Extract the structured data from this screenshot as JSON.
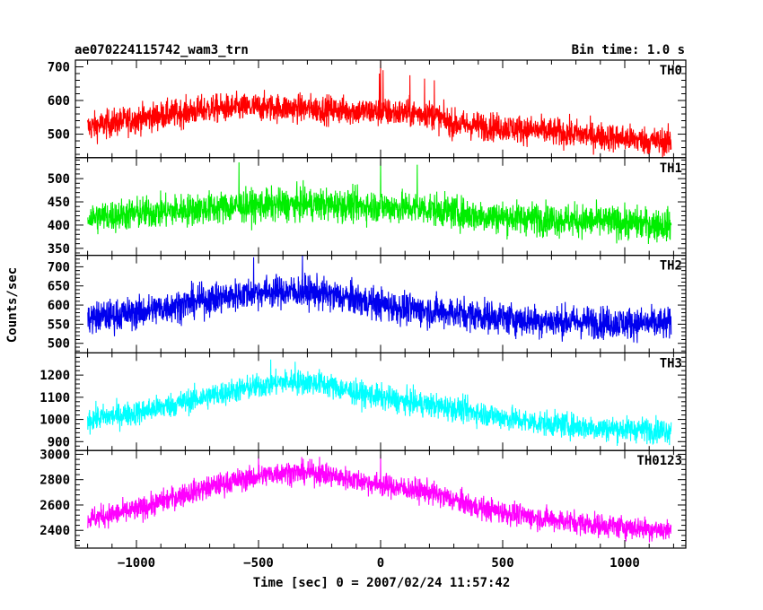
{
  "chart_data": {
    "type": "line",
    "title": "ae070224115742_wam3_trn",
    "subtitle": "Bin time: 1.0 s",
    "xlabel": "Time [sec] 0 = 2007/02/24 11:57:42",
    "ylabel": "Counts/sec",
    "xlim": [
      -1250,
      1250
    ],
    "x_range_data": [
      -1200,
      1190
    ],
    "xticks": [
      -1000,
      -500,
      0,
      500,
      1000
    ],
    "xtick_labels": [
      "−1000",
      "−500",
      "0",
      "500",
      "1000"
    ],
    "grid": false,
    "panels": [
      {
        "name": "TH0",
        "color": "#ff0000",
        "ylim": [
          430,
          720
        ],
        "yticks": [
          500,
          600,
          700
        ],
        "ytick_labels": [
          "500",
          "600",
          "700"
        ],
        "baseline": [
          [
            -1200,
            520
          ],
          [
            -1000,
            545
          ],
          [
            -700,
            575
          ],
          [
            -500,
            580
          ],
          [
            -250,
            575
          ],
          [
            0,
            565
          ],
          [
            200,
            560
          ],
          [
            300,
            530
          ],
          [
            500,
            520
          ],
          [
            800,
            500
          ],
          [
            1190,
            475
          ]
        ],
        "noise": 30,
        "spikes": [
          [
            0,
            720
          ],
          [
            10,
            690
          ],
          [
            -5,
            680
          ],
          [
            120,
            675
          ],
          [
            180,
            665
          ],
          [
            220,
            660
          ]
        ]
      },
      {
        "name": "TH1",
        "color": "#00ee00",
        "ylim": [
          335,
          545
        ],
        "yticks": [
          350,
          400,
          450,
          500
        ],
        "ytick_labels": [
          "350",
          "400",
          "450",
          "500"
        ],
        "baseline": [
          [
            -1200,
            415
          ],
          [
            -1000,
            425
          ],
          [
            -600,
            440
          ],
          [
            -300,
            445
          ],
          [
            0,
            440
          ],
          [
            200,
            435
          ],
          [
            400,
            420
          ],
          [
            800,
            410
          ],
          [
            1190,
            400
          ]
        ],
        "noise": 25,
        "spikes": [
          [
            0,
            540
          ],
          [
            -580,
            535
          ],
          [
            150,
            530
          ]
        ]
      },
      {
        "name": "TH2",
        "color": "#0000ee",
        "ylim": [
          475,
          730
        ],
        "yticks": [
          500,
          550,
          600,
          650,
          700
        ],
        "ytick_labels": [
          "500",
          "550",
          "600",
          "650",
          "700"
        ],
        "baseline": [
          [
            -1200,
            565
          ],
          [
            -1000,
            580
          ],
          [
            -700,
            615
          ],
          [
            -500,
            635
          ],
          [
            -300,
            635
          ],
          [
            -100,
            615
          ],
          [
            100,
            590
          ],
          [
            300,
            580
          ],
          [
            600,
            560
          ],
          [
            1190,
            550
          ]
        ],
        "noise": 30,
        "spikes": [
          [
            -320,
            730
          ],
          [
            -520,
            725
          ]
        ]
      },
      {
        "name": "TH3",
        "color": "#00ffff",
        "ylim": [
          860,
          1300
        ],
        "yticks": [
          900,
          1000,
          1100,
          1200
        ],
        "ytick_labels": [
          "900",
          "1000",
          "1100",
          "1200"
        ],
        "baseline": [
          [
            -1200,
            1000
          ],
          [
            -1000,
            1030
          ],
          [
            -800,
            1080
          ],
          [
            -600,
            1130
          ],
          [
            -400,
            1170
          ],
          [
            -250,
            1165
          ],
          [
            -100,
            1120
          ],
          [
            100,
            1080
          ],
          [
            300,
            1050
          ],
          [
            600,
            990
          ],
          [
            900,
            960
          ],
          [
            1190,
            950
          ]
        ],
        "noise": 40,
        "spikes": [
          [
            -450,
            1270
          ],
          [
            -350,
            1260
          ]
        ]
      },
      {
        "name": "TH0123",
        "color": "#ff00ff",
        "ylim": [
          2260,
          3030
        ],
        "yticks": [
          2400,
          2600,
          2800,
          3000
        ],
        "ytick_labels": [
          "2400",
          "2600",
          "2800",
          "3000"
        ],
        "baseline": [
          [
            -1200,
            2490
          ],
          [
            -1000,
            2560
          ],
          [
            -800,
            2690
          ],
          [
            -600,
            2790
          ],
          [
            -400,
            2860
          ],
          [
            -250,
            2850
          ],
          [
            0,
            2760
          ],
          [
            200,
            2700
          ],
          [
            400,
            2580
          ],
          [
            600,
            2510
          ],
          [
            900,
            2440
          ],
          [
            1190,
            2400
          ]
        ],
        "noise": 65,
        "spikes": [
          [
            0,
            3000
          ],
          [
            -500,
            2990
          ],
          [
            -250,
            2980
          ]
        ]
      }
    ]
  }
}
